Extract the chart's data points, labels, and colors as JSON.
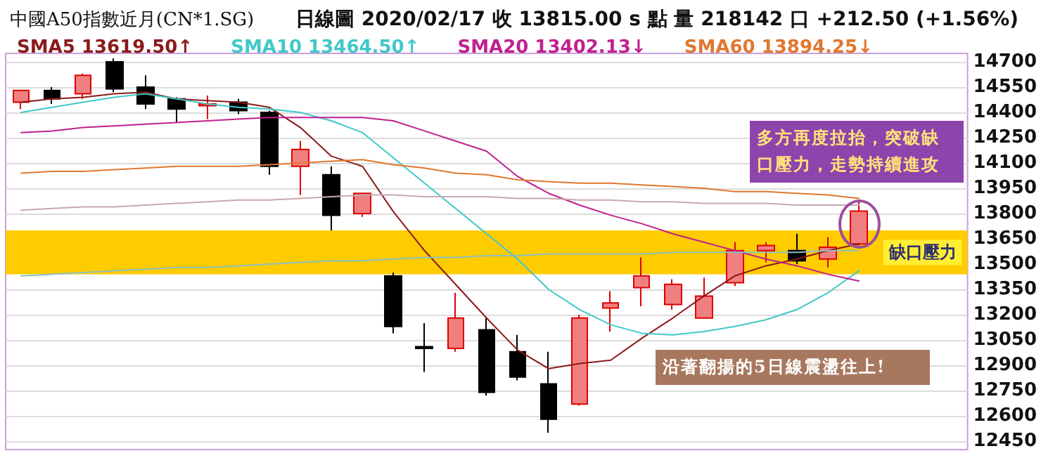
{
  "chart_data": {
    "type": "candlestick",
    "title": "中國A50指數近月(CN*1.SG)",
    "subtitle": "日線圖 2020/02/17 收 13815.00 s 點 量 218142 口 +212.50 (+1.56%)",
    "categories": [
      null,
      null,
      null,
      null,
      null,
      null,
      null,
      null,
      null,
      null,
      null,
      null,
      null,
      null,
      null,
      null,
      null,
      null,
      null,
      null,
      null,
      null,
      null,
      null,
      null,
      null,
      null,
      null
    ],
    "ohlc": [
      [
        14460,
        14530,
        14420,
        14530
      ],
      [
        14530,
        14550,
        14450,
        14480
      ],
      [
        14510,
        14630,
        14480,
        14620
      ],
      [
        14700,
        14720,
        14520,
        14540
      ],
      [
        14550,
        14620,
        14420,
        14450
      ],
      [
        14480,
        14490,
        14340,
        14420
      ],
      [
        14440,
        14500,
        14360,
        14450
      ],
      [
        14460,
        14480,
        14390,
        14410
      ],
      [
        14400,
        14410,
        14030,
        14080
      ],
      [
        14080,
        14230,
        13910,
        14180
      ],
      [
        14030,
        14080,
        13700,
        13790
      ],
      [
        13800,
        13920,
        13780,
        13920
      ],
      [
        13430,
        13450,
        13090,
        13130
      ],
      [
        13010,
        13150,
        12860,
        13000
      ],
      [
        13000,
        13330,
        12980,
        13180
      ],
      [
        13110,
        13180,
        12720,
        12740
      ],
      [
        12980,
        13080,
        12810,
        12830
      ],
      [
        12790,
        12980,
        12500,
        12580
      ],
      [
        12670,
        13200,
        12660,
        13180
      ],
      [
        13240,
        13340,
        13100,
        13270
      ],
      [
        13360,
        13540,
        13250,
        13430
      ],
      [
        13260,
        13410,
        13230,
        13380
      ],
      [
        13180,
        13420,
        13180,
        13310
      ],
      [
        13390,
        13630,
        13370,
        13580
      ],
      [
        13580,
        13630,
        13510,
        13610
      ],
      [
        13580,
        13680,
        13500,
        13520
      ],
      [
        13530,
        13660,
        13480,
        13600
      ],
      [
        13620,
        13870,
        13610,
        13815
      ]
    ],
    "colors": [
      "#f08080",
      "#000000",
      "#f08080",
      "#000000",
      "#000000",
      "#000000",
      "#f08080",
      "#000000",
      "#000000",
      "#f08080",
      "#000000",
      "#f08080",
      "#000000",
      "#000000",
      "#f08080",
      "#000000",
      "#000000",
      "#000000",
      "#f08080",
      "#f08080",
      "#f08080",
      "#f08080",
      "#f08080",
      "#f08080",
      "#f08080",
      "#000000",
      "#f08080",
      "#f08080"
    ],
    "series": [
      {
        "type": "line",
        "name": "SMA5 13619.50↑",
        "color": "#8b1a1a",
        "values": [
          14460,
          14480,
          14490,
          14510,
          14520,
          14480,
          14470,
          14460,
          14430,
          14310,
          14140,
          14080,
          13810,
          13580,
          13380,
          13180,
          12990,
          12880,
          12910,
          12930,
          13060,
          13180,
          13310,
          13430,
          13490,
          13530,
          13580,
          13620
        ]
      },
      {
        "type": "line",
        "name": "SMA10 13464.50↑",
        "color": "#40c8c8",
        "values": [
          14400,
          14430,
          14460,
          14490,
          14510,
          14480,
          14450,
          14430,
          14420,
          14400,
          14350,
          14280,
          14130,
          13980,
          13830,
          13680,
          13530,
          13350,
          13230,
          13140,
          13090,
          13080,
          13100,
          13130,
          13170,
          13230,
          13330,
          13460
        ]
      },
      {
        "type": "line",
        "name": "SMA20 13402.13↓",
        "color": "#c02090",
        "values": [
          14280,
          14290,
          14310,
          14320,
          14330,
          14340,
          14350,
          14360,
          14370,
          14370,
          14370,
          14370,
          14350,
          14290,
          14230,
          14170,
          14020,
          13920,
          13850,
          13790,
          13740,
          13680,
          13630,
          13580,
          13530,
          13490,
          13440,
          13400
        ]
      },
      {
        "type": "line",
        "name": "SMA60 13894.25↓",
        "color": "#e07830",
        "values": [
          14040,
          14050,
          14050,
          14060,
          14070,
          14080,
          14080,
          14080,
          14090,
          14100,
          14110,
          14120,
          14090,
          14070,
          14040,
          14030,
          14000,
          13990,
          13980,
          13980,
          13970,
          13960,
          13950,
          13930,
          13930,
          13920,
          13910,
          13890
        ]
      },
      {
        "type": "line",
        "color": "#c8a8b0",
        "values": [
          13820,
          13830,
          13840,
          13840,
          13850,
          13860,
          13870,
          13880,
          13880,
          13890,
          13900,
          13910,
          13910,
          13900,
          13900,
          13900,
          13890,
          13890,
          13880,
          13880,
          13870,
          13870,
          13860,
          13860,
          13860,
          13850,
          13850,
          13850
        ]
      },
      {
        "type": "line",
        "color": "#8cc0c0",
        "values": [
          13430,
          13440,
          13450,
          13460,
          13470,
          13480,
          13480,
          13490,
          13500,
          13510,
          13520,
          13520,
          13530,
          13540,
          13540,
          13550,
          13550,
          13560,
          13560,
          13560,
          13560,
          13570,
          13570,
          13570,
          13570,
          13570,
          13580,
          13580
        ]
      }
    ],
    "bands": [
      {
        "axis": "y",
        "from": 13440,
        "to": 13700,
        "label": "缺口壓力",
        "color": "#ffcc00"
      }
    ],
    "annotations": [
      "多方再度拉抬，突破缺口壓力，走勢持續進攻",
      "沿著翻揚的5日線震盪往上!"
    ],
    "ylim": [
      12400,
      14750
    ],
    "yticks": [
      12450,
      12600,
      12750,
      12900,
      13050,
      13200,
      13350,
      13500,
      13650,
      13800,
      13950,
      14100,
      14250,
      14400,
      14550,
      14700
    ],
    "grid": "y",
    "legend": "top",
    "marker": "none",
    "line_style": "solid",
    "tick_labels": "y"
  }
}
